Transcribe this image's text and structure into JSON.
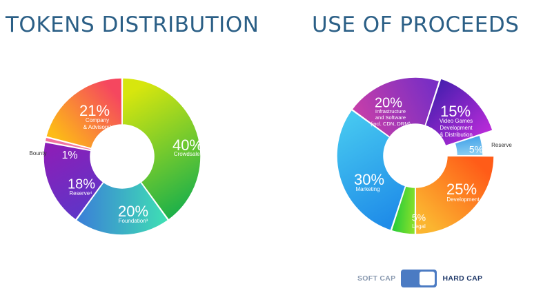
{
  "tokens": {
    "title": "TOKENS DISTRIBUTION"
  },
  "proceeds": {
    "title": "USE OF PROCEEDS"
  },
  "toggle": {
    "soft_label": "SOFT CAP",
    "hard_label": "HARD CAP",
    "selected": "HARD CAP"
  },
  "chart_data": [
    {
      "type": "pie",
      "title": "TOKENS DISTRIBUTION",
      "donut": true,
      "slices": [
        {
          "label": "Crowdsale¹",
          "value": 40,
          "display": "40%",
          "colors": [
            "#d7e60e",
            "#1cb04a"
          ]
        },
        {
          "label": "Foundation³",
          "value": 20,
          "display": "20%",
          "colors": [
            "#3fe1b3",
            "#3a7dd8"
          ]
        },
        {
          "label": "Reserve⁴",
          "value": 18,
          "display": "18%",
          "colors": [
            "#5d36c8",
            "#8a1fb8"
          ]
        },
        {
          "label": "Bounty",
          "value": 1,
          "display": "1%",
          "colors": [
            "#f58aad",
            "#ee5f93"
          ]
        },
        {
          "label": "Company & Advisors²",
          "value": 21,
          "display": "21%",
          "colors": [
            "#fdbb16",
            "#f5475f"
          ]
        }
      ]
    },
    {
      "type": "pie",
      "title": "USE OF PROCEEDS",
      "donut": true,
      "slices": [
        {
          "label": "Video Games Development & Distribution",
          "value": 15,
          "display": "15%",
          "colors": [
            "#4a1fb0",
            "#b72bd8"
          ]
        },
        {
          "label": "Reserve",
          "value": 5,
          "display": "5%",
          "colors": [
            "#3c9ee8",
            "#8fd0f2"
          ]
        },
        {
          "label": "Development",
          "value": 25,
          "display": "25%",
          "colors": [
            "#ff5c18",
            "#fbb530"
          ]
        },
        {
          "label": "Legal",
          "value": 5,
          "display": "5%",
          "colors": [
            "#8ae02b",
            "#17c93b"
          ]
        },
        {
          "label": "Marketing",
          "value": 30,
          "display": "30%",
          "colors": [
            "#1f8ce8",
            "#45c6f0"
          ]
        },
        {
          "label": "Infrastructure and Software (incl. CDN, DRM)",
          "value": 20,
          "display": "20%",
          "colors": [
            "#c93fa8",
            "#7a2ec4"
          ]
        }
      ]
    }
  ]
}
